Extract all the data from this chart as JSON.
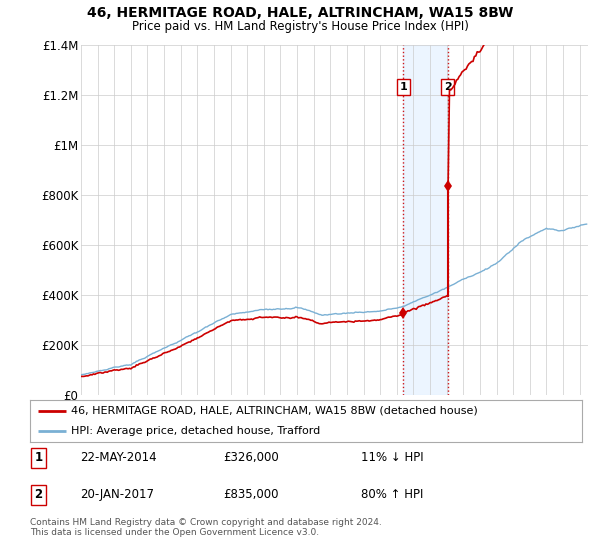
{
  "title1": "46, HERMITAGE ROAD, HALE, ALTRINCHAM, WA15 8BW",
  "title2": "Price paid vs. HM Land Registry's House Price Index (HPI)",
  "ylim": [
    0,
    1400000
  ],
  "xlim_start": 1995.0,
  "xlim_end": 2025.5,
  "property_color": "#cc0000",
  "hpi_color": "#7ab0d4",
  "transaction1_date": 2014.388,
  "transaction1_price": 326000,
  "transaction2_date": 2017.055,
  "transaction2_price": 835000,
  "legend_property": "46, HERMITAGE ROAD, HALE, ALTRINCHAM, WA15 8BW (detached house)",
  "legend_hpi": "HPI: Average price, detached house, Trafford",
  "note1_label": "1",
  "note1_date": "22-MAY-2014",
  "note1_price": "£326,000",
  "note1_hpi": "11% ↓ HPI",
  "note2_label": "2",
  "note2_date": "20-JAN-2017",
  "note2_price": "£835,000",
  "note2_hpi": "80% ↑ HPI",
  "footer": "Contains HM Land Registry data © Crown copyright and database right 2024.\nThis data is licensed under the Open Government Licence v3.0.",
  "background_color": "#ffffff",
  "grid_color": "#cccccc",
  "yticks": [
    0,
    200000,
    400000,
    600000,
    800000,
    1000000,
    1200000,
    1400000
  ],
  "ytick_labels": [
    "£0",
    "£200K",
    "£400K",
    "£600K",
    "£800K",
    "£1M",
    "£1.2M",
    "£1.4M"
  ]
}
